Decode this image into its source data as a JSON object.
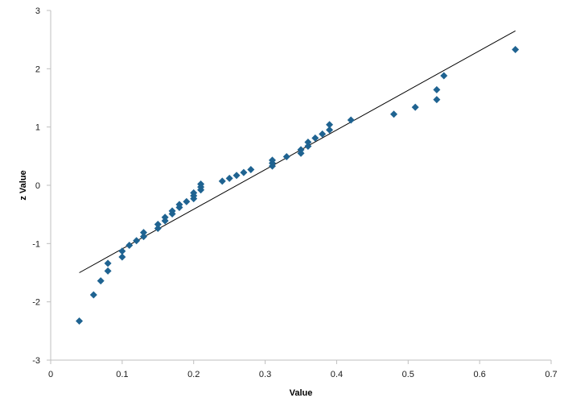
{
  "chart_data": {
    "type": "scatter",
    "title": "",
    "xlabel": "Value",
    "ylabel": "z Value",
    "xlim": [
      0,
      0.7
    ],
    "ylim": [
      -3,
      3
    ],
    "x_ticks": [
      0,
      0.1,
      0.2,
      0.3,
      0.4,
      0.5,
      0.6,
      0.7
    ],
    "y_ticks": [
      -3,
      -2,
      -1,
      0,
      1,
      2,
      3
    ],
    "x_tick_labels": [
      "0",
      "0.1",
      "0.2",
      "0.3",
      "0.4",
      "0.5",
      "0.6",
      "0.7"
    ],
    "y_tick_labels": [
      "-3",
      "-2",
      "-1",
      "0",
      "1",
      "2",
      "3"
    ],
    "grid": false,
    "legend": "none",
    "marker": "diamond",
    "marker_color": "#1f6391",
    "line_color": "#000000",
    "axis_color": "#bfbfbf",
    "series": [
      {
        "values": [
          [
            0.04,
            -2.33
          ],
          [
            0.06,
            -1.88
          ],
          [
            0.07,
            -1.64
          ],
          [
            0.08,
            -1.47
          ],
          [
            0.08,
            -1.34
          ],
          [
            0.1,
            -1.23
          ],
          [
            0.1,
            -1.13
          ],
          [
            0.11,
            -1.03
          ],
          [
            0.12,
            -0.95
          ],
          [
            0.13,
            -0.88
          ],
          [
            0.13,
            -0.81
          ],
          [
            0.15,
            -0.74
          ],
          [
            0.15,
            -0.67
          ],
          [
            0.16,
            -0.61
          ],
          [
            0.16,
            -0.55
          ],
          [
            0.17,
            -0.49
          ],
          [
            0.17,
            -0.44
          ],
          [
            0.18,
            -0.38
          ],
          [
            0.18,
            -0.33
          ],
          [
            0.19,
            -0.28
          ],
          [
            0.2,
            -0.23
          ],
          [
            0.2,
            -0.18
          ],
          [
            0.2,
            -0.13
          ],
          [
            0.21,
            -0.08
          ],
          [
            0.21,
            -0.03
          ],
          [
            0.21,
            0.02
          ],
          [
            0.24,
            0.07
          ],
          [
            0.25,
            0.12
          ],
          [
            0.26,
            0.17
          ],
          [
            0.27,
            0.22
          ],
          [
            0.28,
            0.27
          ],
          [
            0.31,
            0.33
          ],
          [
            0.31,
            0.38
          ],
          [
            0.31,
            0.43
          ],
          [
            0.33,
            0.49
          ],
          [
            0.35,
            0.55
          ],
          [
            0.35,
            0.61
          ],
          [
            0.36,
            0.67
          ],
          [
            0.36,
            0.74
          ],
          [
            0.37,
            0.81
          ],
          [
            0.38,
            0.88
          ],
          [
            0.39,
            0.95
          ],
          [
            0.39,
            1.04
          ],
          [
            0.42,
            1.12
          ],
          [
            0.48,
            1.22
          ],
          [
            0.51,
            1.34
          ],
          [
            0.54,
            1.47
          ],
          [
            0.54,
            1.64
          ],
          [
            0.55,
            1.88
          ],
          [
            0.65,
            2.33
          ]
        ]
      }
    ],
    "trendline": [
      [
        0.04,
        -1.5
      ],
      [
        0.65,
        2.65
      ]
    ]
  }
}
